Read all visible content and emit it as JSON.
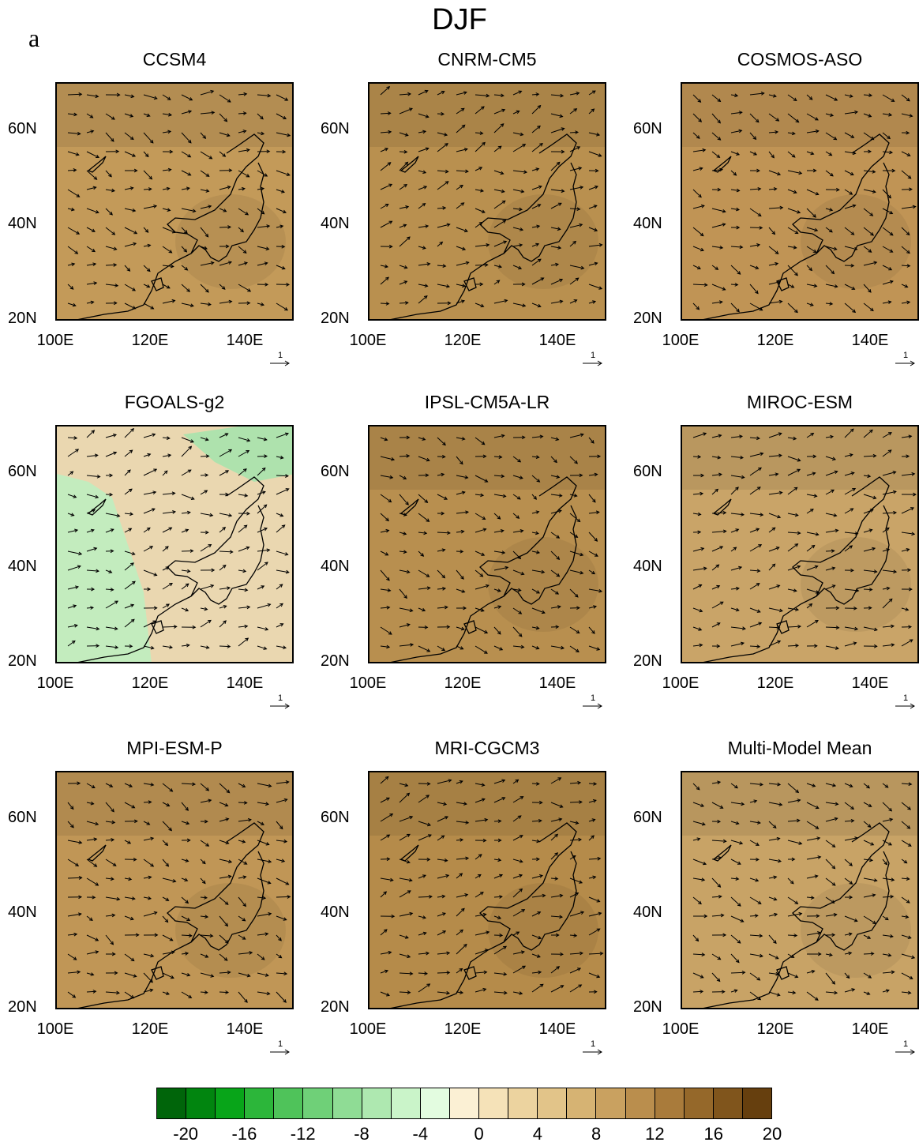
{
  "figure": {
    "title": "DJF",
    "panel_letter": "a",
    "lat_labels": [
      "60N",
      "40N",
      "20N"
    ],
    "lon_labels": [
      "100E",
      "120E",
      "140E"
    ],
    "ref_vector_label": "1",
    "panels": [
      {
        "title": "CCSM4",
        "tone": "#c39a59"
      },
      {
        "title": "CNRM-CM5",
        "tone": "#b9904f"
      },
      {
        "title": "COSMOS-ASO",
        "tone": "#c09455"
      },
      {
        "title": "FGOALS-g2",
        "tone": "#ead7b0"
      },
      {
        "title": "IPSL-CM5A-LR",
        "tone": "#b88f4f"
      },
      {
        "title": "MIROC-ESM",
        "tone": "#c9a468"
      },
      {
        "title": "MPI-ESM-P",
        "tone": "#c09656"
      },
      {
        "title": "MRI-CGCM3",
        "tone": "#b58b4a"
      },
      {
        "title": "Multi-Model Mean",
        "tone": "#c8a366"
      }
    ],
    "colorbar": {
      "labels": [
        "-20",
        "-16",
        "-12",
        "-8",
        "-4",
        "0",
        "4",
        "8",
        "12",
        "16",
        "20"
      ],
      "colors": [
        "#00650a",
        "#01850f",
        "#08a519",
        "#2cb63a",
        "#4fc35a",
        "#6fd078",
        "#8fdc95",
        "#aee8b0",
        "#caf4c9",
        "#e3fce0",
        "#fbf0d4",
        "#f5e2b8",
        "#ecd39f",
        "#e2c489",
        "#d6b373",
        "#c9a160",
        "#ba8e4d",
        "#a97b3b",
        "#95682a",
        "#80551c",
        "#663f0e"
      ]
    }
  }
}
